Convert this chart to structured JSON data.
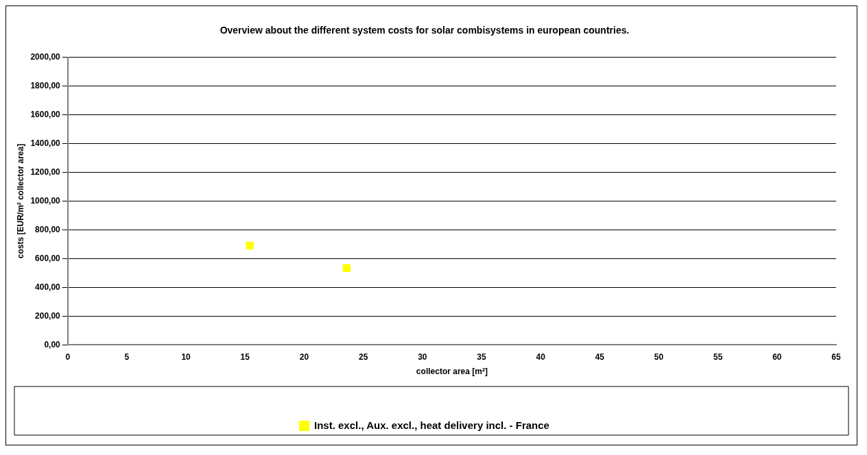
{
  "chart_data": {
    "type": "scatter",
    "title": "Overview about the different system costs for solar combisystems in european countries.",
    "xlabel": "collector area [m²]",
    "ylabel": "costs [EUR/m² collector area]",
    "series": [
      {
        "name": "Inst. excl., Aux. excl., heat delivery incl. - France",
        "color": "#ffff00",
        "x": [
          15.4,
          23.6
        ],
        "values": [
          691,
          534
        ]
      }
    ],
    "xlim": [
      0,
      65
    ],
    "xticks": [
      0,
      5,
      10,
      15,
      20,
      25,
      30,
      35,
      40,
      45,
      50,
      55,
      60,
      65
    ],
    "ylim": [
      0,
      2000
    ],
    "yticks": [
      {
        "value": 0,
        "label": "0,00"
      },
      {
        "value": 200,
        "label": "200,00"
      },
      {
        "value": 400,
        "label": "400,00"
      },
      {
        "value": 600,
        "label": "600,00"
      },
      {
        "value": 800,
        "label": "800,00"
      },
      {
        "value": 1000,
        "label": "1000,00"
      },
      {
        "value": 1200,
        "label": "1200,00"
      },
      {
        "value": 1400,
        "label": "1400,00"
      },
      {
        "value": 1600,
        "label": "1600,00"
      },
      {
        "value": 1800,
        "label": "1800,00"
      },
      {
        "value": 2000,
        "label": "2000,00"
      }
    ],
    "grid": "y",
    "legend": "bottom",
    "marker": "square"
  }
}
